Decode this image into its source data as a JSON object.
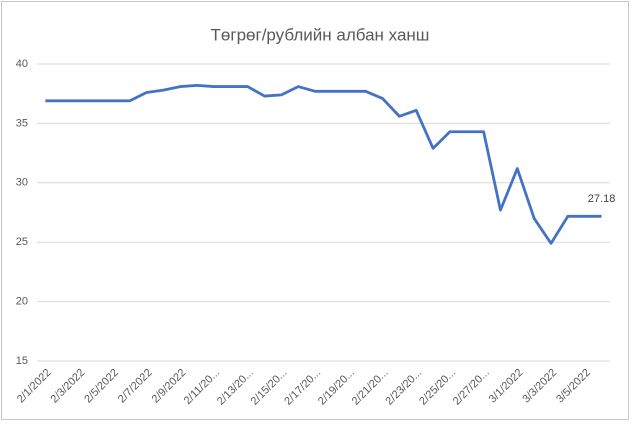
{
  "chart_data": {
    "type": "line",
    "title": "Төгрөг/рублийн албан ханш",
    "categories": [
      "2/1/2022",
      null,
      "2/3/2022",
      null,
      "2/5/2022",
      null,
      "2/7/2022",
      null,
      "2/9/2022",
      null,
      "2/11/20...",
      null,
      "2/13/20...",
      null,
      "2/15/20...",
      null,
      "2/17/20...",
      null,
      "2/19/20...",
      null,
      "2/21/20...",
      null,
      "2/23/20...",
      null,
      "2/25/20...",
      null,
      "2/27/20...",
      null,
      "3/1/2022",
      null,
      "3/3/2022",
      null,
      "3/5/2022",
      null
    ],
    "values": [
      36.9,
      36.9,
      36.9,
      36.9,
      36.9,
      36.9,
      37.6,
      37.8,
      38.1,
      38.2,
      38.1,
      38.1,
      38.1,
      37.3,
      37.4,
      38.1,
      37.7,
      37.7,
      37.7,
      37.7,
      37.1,
      35.6,
      36.1,
      32.9,
      34.3,
      34.3,
      34.3,
      27.7,
      31.2,
      27.0,
      24.9,
      27.18,
      27.18,
      27.18
    ],
    "value_labels": [
      null,
      null,
      null,
      null,
      null,
      null,
      null,
      null,
      null,
      null,
      null,
      null,
      null,
      null,
      null,
      null,
      null,
      null,
      null,
      null,
      null,
      null,
      null,
      null,
      null,
      null,
      null,
      null,
      null,
      null,
      null,
      null,
      null,
      "27.18"
    ],
    "color": "#4472c4",
    "ylim": [
      15,
      40
    ],
    "yticks": [
      15,
      20,
      25,
      30,
      35,
      40
    ],
    "grid": true
  }
}
